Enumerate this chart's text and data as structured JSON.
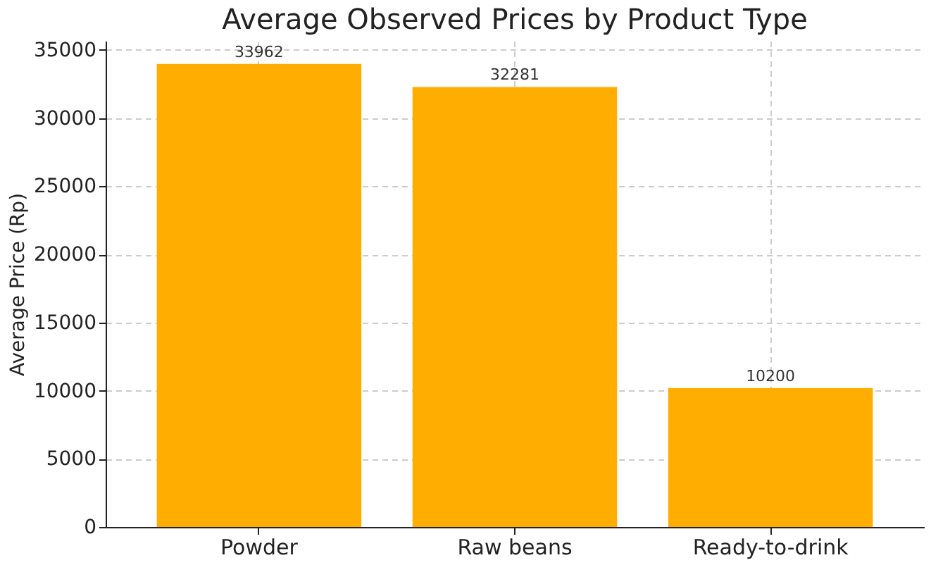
{
  "chart_data": {
    "type": "bar",
    "title": "Average Observed Prices by Product Type",
    "ylabel": "Average Price (Rp)",
    "categories": [
      "Powder",
      "Raw beans",
      "Ready-to-drink"
    ],
    "values": [
      33962,
      32281,
      10200
    ],
    "color": "#ffad00",
    "ylim": [
      0,
      35660
    ],
    "yticks": [
      0,
      5000,
      10000,
      15000,
      20000,
      25000,
      30000,
      35000
    ],
    "grid": true,
    "data_labels": true
  }
}
